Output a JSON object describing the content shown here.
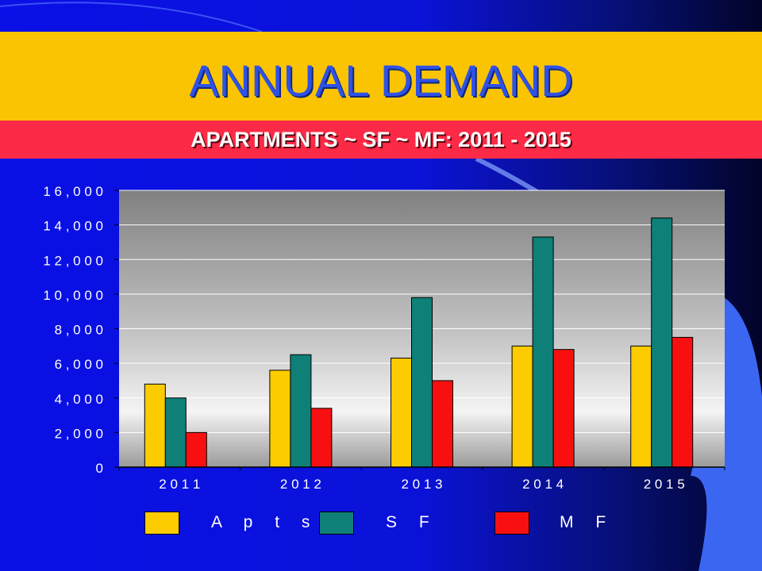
{
  "slide": {
    "title": "ANNUAL DEMAND",
    "subtitle": "APARTMENTS ~ SF ~ MF:  2011 - 2015"
  },
  "colors": {
    "background": "#0a10e6",
    "title_band": "#fbc403",
    "subtitle_band": "#fc2a46",
    "title_text": "#2f52e6"
  },
  "chart_data": {
    "type": "bar",
    "categories": [
      "2011",
      "2012",
      "2013",
      "2014",
      "2015"
    ],
    "category_labels": [
      "2 0 1 1",
      "2 0 1 2",
      "2 0 1 3",
      "2 0 1 4",
      "2 0 1 5"
    ],
    "series": [
      {
        "name": "Apts",
        "display_name": "A p t s",
        "color": "#fdcc00",
        "values": [
          4800,
          5600,
          6300,
          7000,
          7000
        ]
      },
      {
        "name": "SF",
        "display_name": "S F",
        "color": "#0e8078",
        "values": [
          4000,
          6500,
          9800,
          13300,
          14400
        ]
      },
      {
        "name": "MF",
        "display_name": "M F",
        "color": "#f81010",
        "values": [
          2000,
          3400,
          5000,
          6800,
          7500
        ]
      }
    ],
    "y_ticks": [
      {
        "value": 0,
        "label": "0"
      },
      {
        "value": 2000,
        "label": "2 , 0 0 0"
      },
      {
        "value": 4000,
        "label": "4 , 0 0 0"
      },
      {
        "value": 6000,
        "label": "6 , 0 0 0"
      },
      {
        "value": 8000,
        "label": "8 , 0 0 0"
      },
      {
        "value": 10000,
        "label": "1 0 , 0 0 0"
      },
      {
        "value": 12000,
        "label": "1 2 , 0 0 0"
      },
      {
        "value": 14000,
        "label": "1 4 , 0 0 0"
      },
      {
        "value": 16000,
        "label": "1 6 , 0 0 0"
      }
    ],
    "ylim": [
      0,
      16000
    ],
    "grid": true,
    "legend_position": "bottom",
    "title": "",
    "xlabel": "",
    "ylabel": ""
  }
}
